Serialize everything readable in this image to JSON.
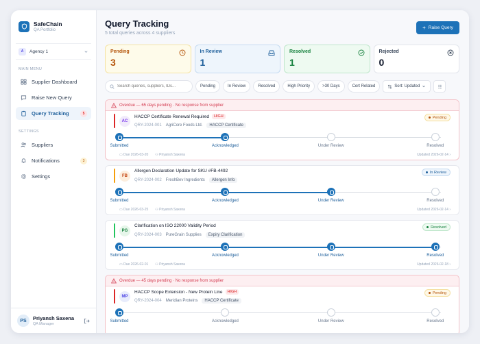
{
  "brand": {
    "name": "SafeChain",
    "subtitle": "QA Portfolio"
  },
  "agency": {
    "badge": "A",
    "name": "Agency 1"
  },
  "nav": {
    "main_label": "MAIN MENU",
    "main_items": [
      {
        "label": "Supplier Dashboard",
        "icon": "dashboard-icon"
      },
      {
        "label": "Raise New Query",
        "icon": "message-icon"
      },
      {
        "label": "Query Tracking",
        "icon": "clipboard-icon",
        "count": "5",
        "active": true
      }
    ],
    "settings_label": "SETTINGS",
    "settings_items": [
      {
        "label": "Suppliers",
        "icon": "users-icon"
      },
      {
        "label": "Notifications",
        "icon": "bell-icon",
        "count": "3"
      },
      {
        "label": "Settings",
        "icon": "gear-icon"
      }
    ]
  },
  "user": {
    "initials": "PS",
    "name": "Priyansh Saxena",
    "role": "QA Manager"
  },
  "header": {
    "title": "Query Tracking",
    "subtitle": "5 total queries across 4 suppliers",
    "raise_button": "Raise Query"
  },
  "stats": [
    {
      "label": "Pending",
      "value": "3",
      "color": "#b45309",
      "bg": "#fefbea",
      "border": "#f5e3a3"
    },
    {
      "label": "In Review",
      "value": "1",
      "color": "#1d5e9a",
      "bg": "#eef5fc",
      "border": "#c5dbf1"
    },
    {
      "label": "Resolved",
      "value": "1",
      "color": "#15803d",
      "bg": "#eefaf1",
      "border": "#bfe6cb"
    },
    {
      "label": "Rejected",
      "value": "0",
      "color": "#334155",
      "bg": "#ffffff",
      "border": "#e2e5ec"
    }
  ],
  "filters": {
    "search_placeholder": "Search queries, suppliers, IDs...",
    "chips": [
      "Pending",
      "In Review",
      "Resolved",
      "High Priority",
      ">30 Days",
      "Cert Related"
    ],
    "sort": "Sort: Updated"
  },
  "stages": [
    "Submitted",
    "Acknowledged",
    "Under Review",
    "Resolved"
  ],
  "queries": [
    {
      "overdue": "Overdue — 65 days pending · No response from supplier",
      "initials": "AC",
      "avatar_bg": "#f1ebfb",
      "avatar_fg": "#7c3aed",
      "accent": "#dc2626",
      "title": "HACCP Certificate Renewal Required",
      "priority": "HIGH",
      "id": "QRY-2024-001",
      "supplier": "AgriCore Foods Ltd.",
      "tag": "HACCP Certificate",
      "status": "Pending",
      "status_fg": "#b45309",
      "status_bg": "#fef8e7",
      "status_border": "#f5dfa0",
      "progress": 2,
      "due": "Due 2026-03-20",
      "owner": "Priyansh Saxena",
      "updated": "Updated 2026-02-14"
    },
    {
      "overdue": "",
      "initials": "FB",
      "avatar_bg": "#fdeedd",
      "avatar_fg": "#c2410c",
      "accent": "#f59e0b",
      "title": "Allergen Declaration Update for SKU #FB-4492",
      "priority": "",
      "id": "QRY-2024-002",
      "supplier": "FreshBev Ingredients",
      "tag": "Allergen Info",
      "status": "In Review",
      "status_fg": "#1d5e9a",
      "status_bg": "#eef5fc",
      "status_border": "#c5dbf1",
      "progress": 3,
      "due": "Due 2026-03-25",
      "owner": "Priyansh Saxena",
      "updated": "Updated 2026-02-14"
    },
    {
      "overdue": "",
      "initials": "PG",
      "avatar_bg": "#e6f6ea",
      "avatar_fg": "#15803d",
      "accent": "#22c55e",
      "title": "Clarification on ISO 22000 Validity Period",
      "priority": "",
      "id": "QRY-2024-003",
      "supplier": "PureGrain Supplies",
      "tag": "Expiry Clarification",
      "status": "Resolved",
      "status_fg": "#15803d",
      "status_bg": "#eefaf1",
      "status_border": "#bfe6cb",
      "progress": 4,
      "due": "Due 2026-02-01",
      "owner": "Priyansh Saxena",
      "updated": "Updated 2026-02-18"
    },
    {
      "overdue": "Overdue — 45 days pending · No response from supplier",
      "initials": "MP",
      "avatar_bg": "#e8ecfc",
      "avatar_fg": "#4f46e5",
      "accent": "#dc2626",
      "title": "HACCP Scope Extension - New Protein Line",
      "priority": "HIGH",
      "id": "QRY-2024-004",
      "supplier": "Meridian Proteins",
      "tag": "HACCP Certificate",
      "status": "Pending",
      "status_fg": "#b45309",
      "status_bg": "#fef8e7",
      "status_border": "#f5dfa0",
      "progress": 1,
      "due": "",
      "owner": "",
      "updated": ""
    }
  ]
}
